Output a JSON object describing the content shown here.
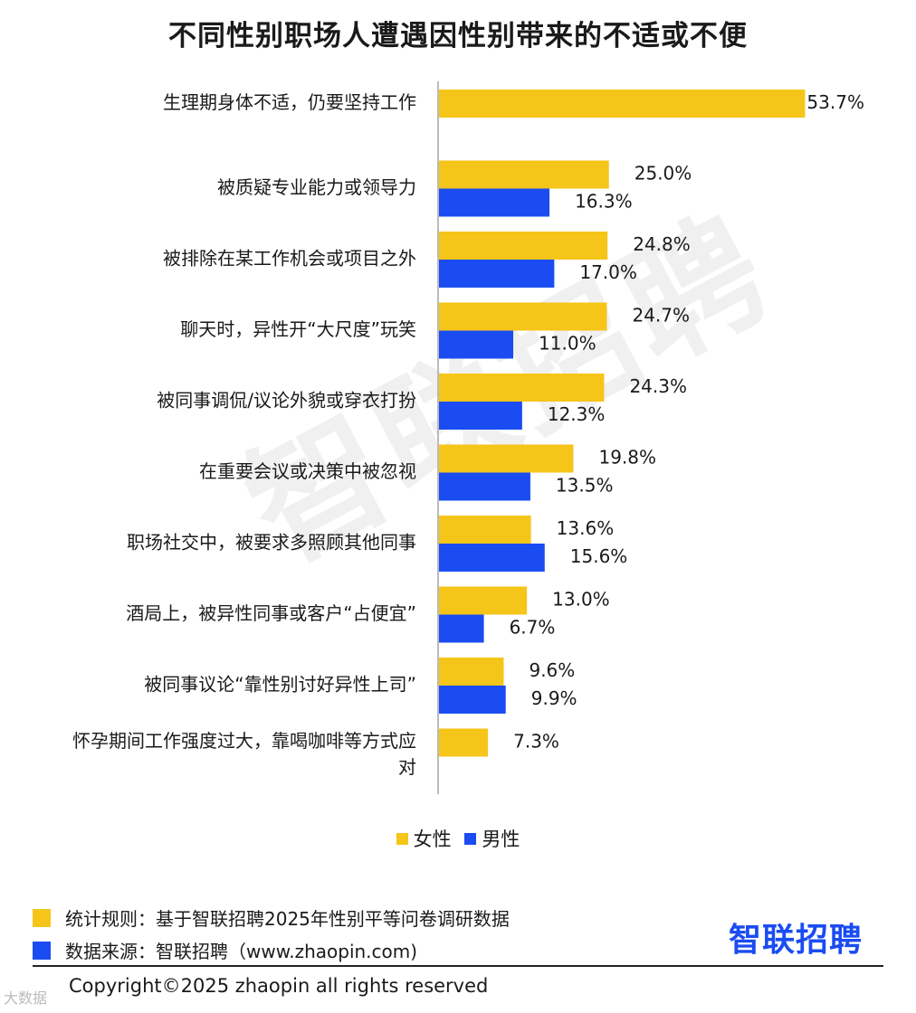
{
  "title": "不同性别职场人遭遇因性别带来的不适或不便",
  "watermark": "智联招聘",
  "colors": {
    "female": "#F5C51A",
    "male": "#1A4CF2",
    "axis": "#BBBBBB"
  },
  "chart_data": {
    "type": "bar",
    "orientation": "horizontal",
    "categories": [
      [
        "生理期身体不适，仍要坚持工作"
      ],
      [
        "被质疑专业能力或领导力"
      ],
      [
        "被排除在某工作机会或项目之外"
      ],
      [
        "聊天时，异性开“大尺度”玩笑"
      ],
      [
        "被同事调侃/议论外貌或穿衣打扮"
      ],
      [
        "在重要会议或决策中被忽视"
      ],
      [
        "职场社交中，被要求多照顾其他同事"
      ],
      [
        "酒局上，被异性同事或客户“占便宜”"
      ],
      [
        "被同事议论“靠性别讨好异性上司”"
      ],
      [
        "怀孕期间工作强度过大，靠喝咖啡等方式应",
        "对"
      ]
    ],
    "series": [
      {
        "name": "女性",
        "values": [
          53.7,
          25.0,
          24.8,
          24.7,
          24.3,
          19.8,
          13.6,
          13.0,
          9.6,
          7.3
        ],
        "labels": [
          "53.7%",
          "25.0%",
          "24.8%",
          "24.7%",
          "24.3%",
          "19.8%",
          "13.6%",
          "13.0%",
          "9.6%",
          "7.3%"
        ]
      },
      {
        "name": "男性",
        "values": [
          null,
          16.3,
          17.0,
          11.0,
          12.3,
          13.5,
          15.6,
          6.7,
          9.9,
          null
        ],
        "labels": [
          "",
          "16.3%",
          "17.0%",
          "11.0%",
          "12.3%",
          "13.5%",
          "15.6%",
          "6.7%",
          "9.9%",
          ""
        ]
      }
    ],
    "legend_position": "bottom",
    "grid": false
  },
  "footer": {
    "rule": "统计规则：基于智联招聘2025年性别平等问卷调研数据",
    "source": "数据来源：智联招聘（www.zhaopin.com)",
    "brand": "智联招聘",
    "copyright": "Copyright©2025 zhaopin all rights reserved",
    "corner_mark": "大数据"
  }
}
